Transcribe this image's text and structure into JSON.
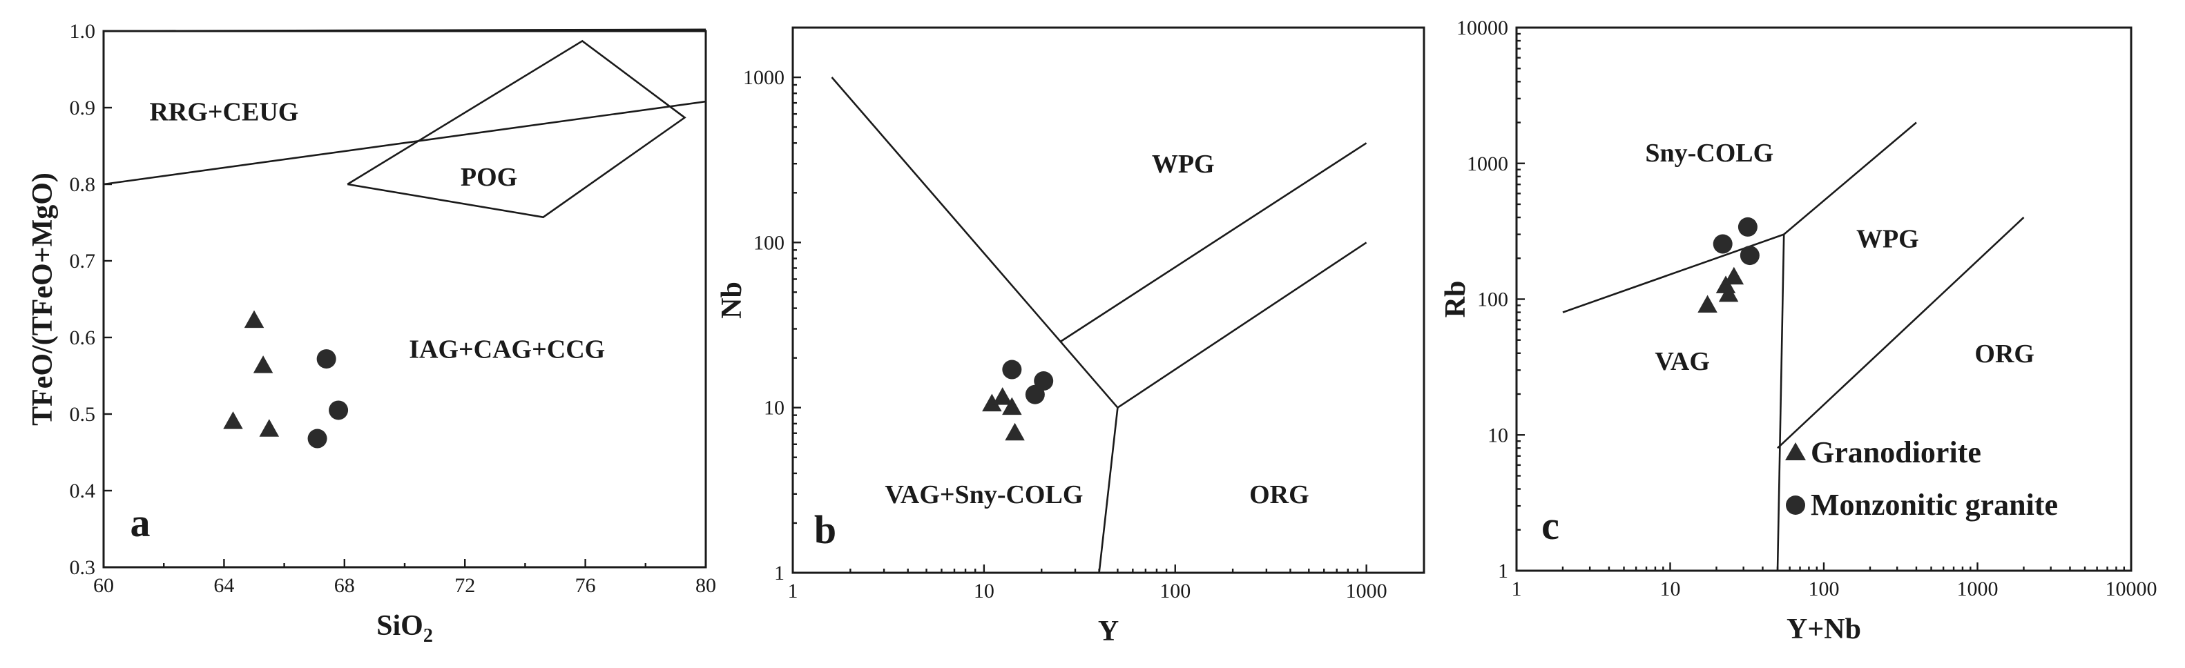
{
  "chart_data": [
    {
      "type": "scatter",
      "panel": "a",
      "xlabel": "SiO",
      "xlabel_sub": "2",
      "ylabel": "TFeO/(TFeO+MgO)",
      "xscale": "linear",
      "yscale": "linear",
      "xlim": [
        60,
        80
      ],
      "ylim": [
        0.3,
        1.0
      ],
      "x_ticks": [
        60,
        64,
        68,
        72,
        76,
        80
      ],
      "y_ticks": [
        0.3,
        0.4,
        0.5,
        0.6,
        0.7,
        0.8,
        0.9,
        1.0
      ],
      "x_tick_labels": [
        "60",
        "64",
        "68",
        "72",
        "76",
        "80"
      ],
      "y_tick_labels": [
        "0.3",
        "0.4",
        "0.5",
        "0.6",
        "0.7",
        "0.8",
        "0.9",
        "1.0"
      ],
      "region_labels": [
        {
          "text": "RRG+CEUG",
          "x": 64.0,
          "y": 0.895
        },
        {
          "text": "POG",
          "x": 72.8,
          "y": 0.81
        },
        {
          "text": "IAG+CAG+CCG",
          "x": 73.4,
          "y": 0.585
        }
      ],
      "boundaries": [
        [
          [
            60,
            0.8
          ],
          [
            80,
            0.908
          ]
        ],
        [
          [
            68.1,
            0.8
          ],
          [
            75.9,
            0.987
          ],
          [
            79.3,
            0.887
          ],
          [
            74.6,
            0.757
          ],
          [
            68.1,
            0.8
          ]
        ],
        [
          [
            60,
            1.0
          ],
          [
            80,
            1.002
          ]
        ]
      ],
      "series": [
        {
          "marker": "triangle",
          "points": [
            [
              64.3,
              0.49
            ],
            [
              65.0,
              0.622
            ],
            [
              65.3,
              0.563
            ],
            [
              65.5,
              0.48
            ]
          ]
        },
        {
          "marker": "circle",
          "points": [
            [
              67.1,
              0.468
            ],
            [
              67.4,
              0.572
            ],
            [
              67.8,
              0.505
            ]
          ]
        }
      ],
      "grid": false
    },
    {
      "type": "scatter",
      "panel": "b",
      "xlabel": "Y",
      "ylabel": "Nb",
      "xscale": "log",
      "yscale": "log",
      "xlim": [
        1,
        2000
      ],
      "ylim": [
        1,
        2000
      ],
      "x_ticks": [
        1,
        10,
        100,
        1000
      ],
      "y_ticks": [
        1,
        10,
        100,
        1000
      ],
      "x_tick_labels": [
        "1",
        "10",
        "100",
        "1000"
      ],
      "y_tick_labels": [
        "1",
        "10",
        "100",
        "1000"
      ],
      "region_labels": [
        {
          "text": "WPG",
          "x": 110,
          "y": 300
        },
        {
          "text": "VAG+Sny-COLG",
          "x": 10,
          "y": 3
        },
        {
          "text": "ORG",
          "x": 350,
          "y": 3
        }
      ],
      "boundaries": [
        [
          [
            1.6,
            1000
          ],
          [
            50,
            10
          ]
        ],
        [
          [
            50,
            10
          ],
          [
            40,
            1
          ]
        ],
        [
          [
            50,
            10
          ],
          [
            1000,
            100
          ]
        ],
        [
          [
            25,
            25
          ],
          [
            1000,
            400
          ]
        ]
      ],
      "series": [
        {
          "marker": "triangle",
          "points": [
            [
              11,
              10.5
            ],
            [
              12.5,
              11.5
            ],
            [
              14,
              10
            ],
            [
              14.5,
              7
            ]
          ]
        },
        {
          "marker": "circle",
          "points": [
            [
              14,
              17
            ],
            [
              18.5,
              12
            ],
            [
              20.5,
              14.5
            ]
          ]
        }
      ],
      "grid": false
    },
    {
      "type": "scatter",
      "panel": "c",
      "xlabel": "Y+Nb",
      "ylabel": "Rb",
      "xscale": "log",
      "yscale": "log",
      "xlim": [
        1,
        10000
      ],
      "ylim": [
        1,
        10000
      ],
      "x_ticks": [
        1,
        10,
        100,
        1000,
        10000
      ],
      "y_ticks": [
        1,
        10,
        100,
        1000,
        10000
      ],
      "x_tick_labels": [
        "1",
        "10",
        "100",
        "1000",
        "10000"
      ],
      "y_tick_labels": [
        "1",
        "10",
        "100",
        "1000",
        "10000"
      ],
      "region_labels": [
        {
          "text": "Sny-COLG",
          "x": 18,
          "y": 1200
        },
        {
          "text": "WPG",
          "x": 260,
          "y": 280
        },
        {
          "text": "VAG",
          "x": 12,
          "y": 35
        },
        {
          "text": "ORG",
          "x": 1500,
          "y": 40
        }
      ],
      "boundaries": [
        [
          [
            2,
            80
          ],
          [
            55,
            300
          ]
        ],
        [
          [
            55,
            300
          ],
          [
            400,
            2000
          ]
        ],
        [
          [
            55,
            300
          ],
          [
            50,
            1
          ]
        ],
        [
          [
            50,
            8
          ],
          [
            2000,
            400
          ]
        ]
      ],
      "series": [
        {
          "marker": "triangle",
          "name": "Granodiorite",
          "points": [
            [
              17.5,
              90
            ],
            [
              23,
              125
            ],
            [
              24,
              108
            ],
            [
              26,
              145
            ]
          ]
        },
        {
          "marker": "circle",
          "name": "Monzonitic granite",
          "points": [
            [
              22,
              255
            ],
            [
              32,
              340
            ],
            [
              33,
              210
            ]
          ]
        }
      ],
      "legend": {
        "position": "bottom-right",
        "entries": [
          "Granodiorite",
          "Monzonitic granite"
        ]
      },
      "grid": false
    }
  ]
}
